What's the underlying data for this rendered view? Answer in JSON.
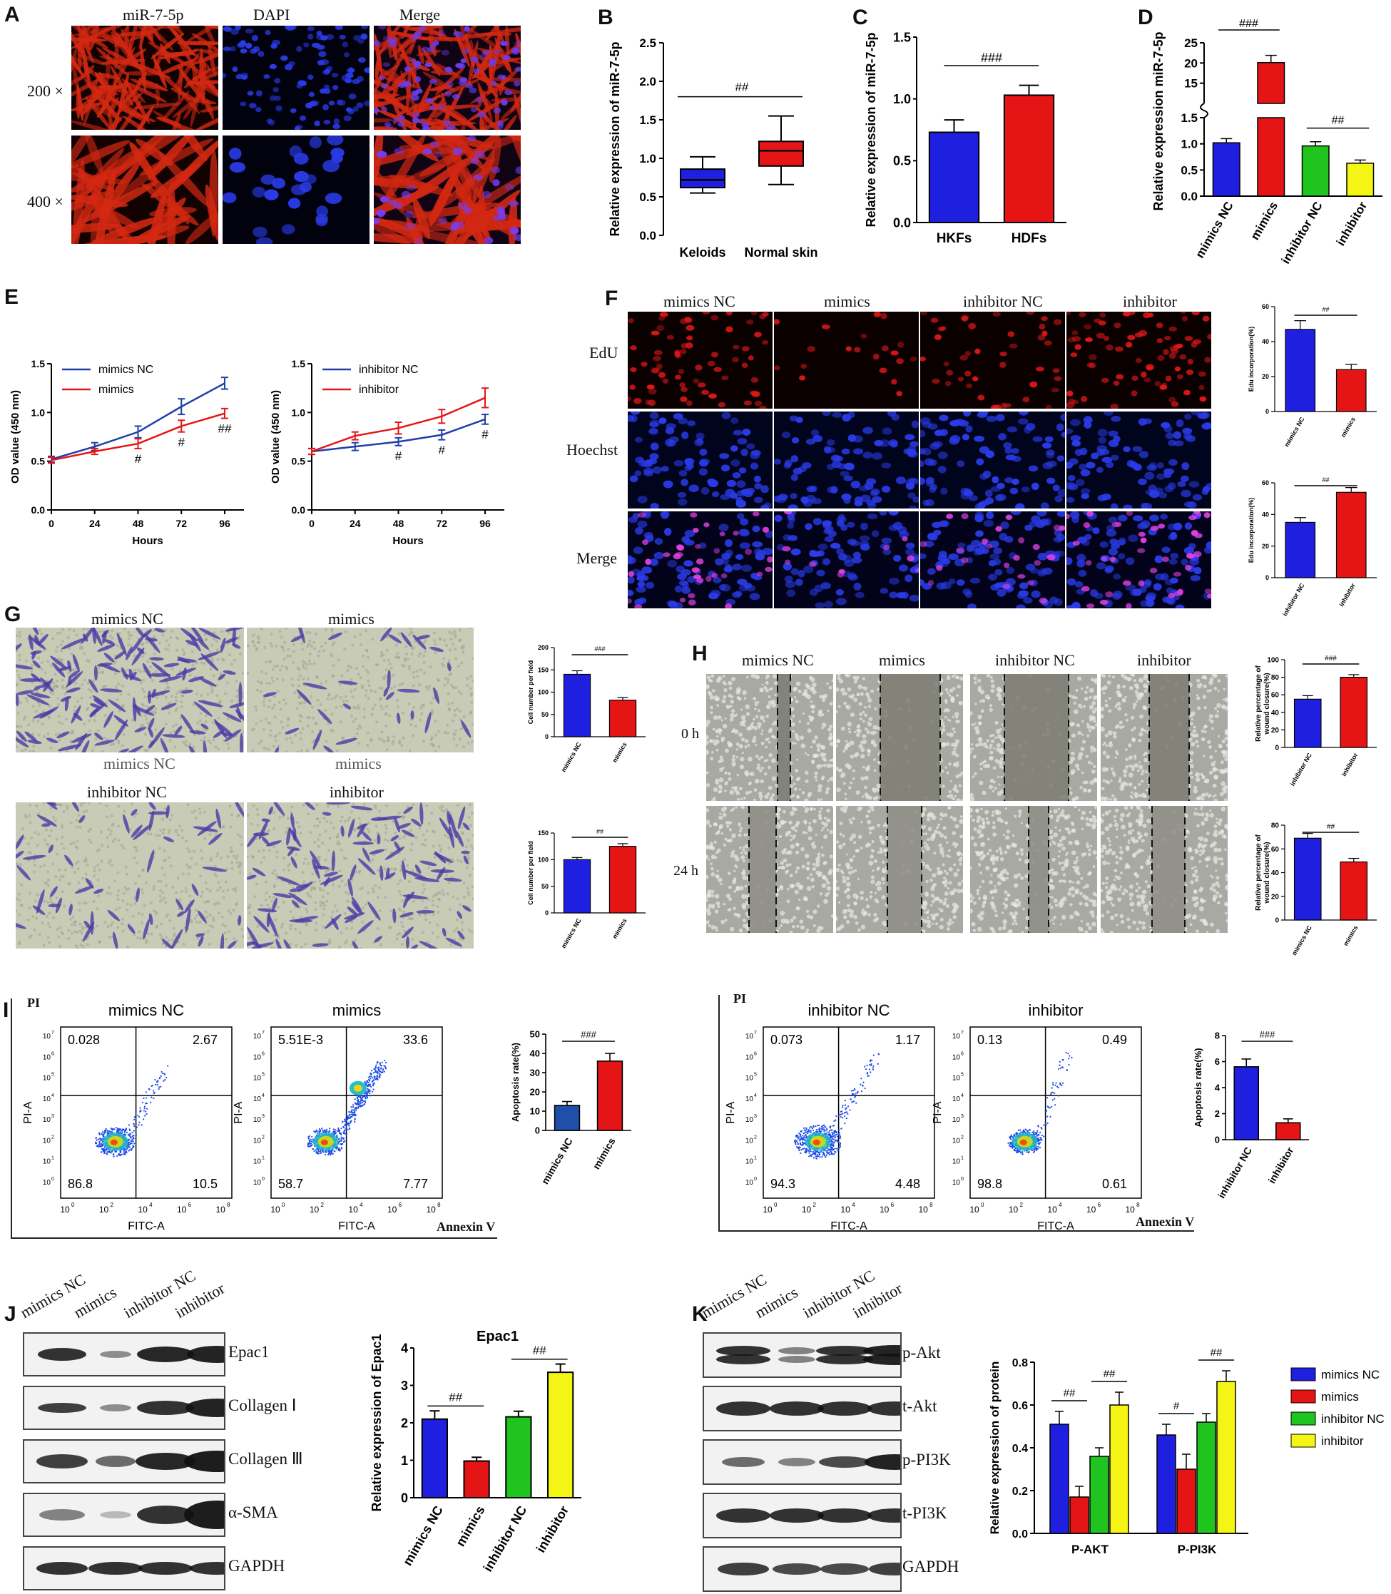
{
  "panels": {
    "A": "A",
    "B": "B",
    "C": "C",
    "D": "D",
    "E": "E",
    "F": "F",
    "G": "G",
    "H": "H",
    "I": "I",
    "J": "J",
    "K": "K"
  },
  "A": {
    "cols": [
      "miR-7-5p",
      "DAPI",
      "Merge"
    ],
    "rows": [
      "200 ×",
      "400 ×"
    ]
  },
  "F": {
    "cols": [
      "mimics NC",
      "mimics",
      "inhibitor NC",
      "inhibitor"
    ],
    "rows": [
      "EdU",
      "Hoechst",
      "Merge"
    ]
  },
  "G": {
    "labels": [
      "mimics NC",
      "mimics",
      "mimics NC",
      "mimics",
      "inhibitor NC",
      "inhibitor"
    ]
  },
  "H": {
    "cols": [
      "mimics NC",
      "mimics",
      "inhibitor NC",
      "inhibitor"
    ],
    "rows": [
      "0 h",
      "24 h"
    ]
  },
  "I": {
    "left": {
      "titles": [
        "mimics NC",
        "mimics"
      ],
      "quads": [
        [
          "0.028",
          "2.67",
          "86.8",
          "10.5"
        ],
        [
          "5.51E-3",
          "33.6",
          "58.7",
          "7.77"
        ]
      ]
    },
    "right": {
      "titles": [
        "inhibitor NC",
        "inhibitor"
      ],
      "quads": [
        [
          "0.073",
          "1.17",
          "94.3",
          "4.48"
        ],
        [
          "0.13",
          "0.49",
          "98.8",
          "0.61"
        ]
      ]
    },
    "pi": "PI",
    "pia": "PI-A",
    "fitc": "FITC-A",
    "annexin": "Annexin V",
    "xticks": [
      "10",
      "10",
      "10",
      "10",
      "10"
    ],
    "xexp": [
      "0",
      "2",
      "4",
      "6",
      "8"
    ],
    "yexp": [
      "7",
      "6",
      "5",
      "4",
      "3",
      "2",
      "1",
      "0"
    ]
  },
  "J": {
    "lanes": [
      "mimics NC",
      "mimics",
      "inhibitor NC",
      "inhibitor"
    ],
    "bands": [
      "Epac1",
      "Collagen Ⅰ",
      "Collagen Ⅲ",
      "α-SMA",
      "GAPDH"
    ]
  },
  "K": {
    "lanes": [
      "mimics NC",
      "mimics",
      "inhibitor NC",
      "inhibitor"
    ],
    "bands": [
      "p-Akt",
      "t-Akt",
      "p-PI3K",
      "t-PI3K",
      "GAPDH"
    ]
  },
  "chart_data": [
    {
      "id": "B",
      "type": "box",
      "categories": [
        "Keloids",
        "Normal skin"
      ],
      "ylabel": "Relative expression of miR-7-5p",
      "ylim": [
        0,
        2.5
      ],
      "yticks": [
        "0.0",
        "0.5",
        "1.0",
        "1.5",
        "2.0",
        "2.5"
      ],
      "boxes": [
        {
          "min": 0.55,
          "q1": 0.62,
          "median": 0.72,
          "q3": 0.86,
          "max": 1.02,
          "color": "#1f1fe0"
        },
        {
          "min": 0.66,
          "q1": 0.9,
          "median": 1.1,
          "q3": 1.22,
          "max": 1.55,
          "color": "#e51515"
        }
      ],
      "sig": "##"
    },
    {
      "id": "C",
      "type": "bar",
      "categories": [
        "HKFs",
        "HDFs"
      ],
      "values": [
        0.73,
        1.03
      ],
      "errors": [
        0.1,
        0.08
      ],
      "colors": [
        "#1f1fe0",
        "#e51515"
      ],
      "ylabel": "Relative expression of miR-7-5p",
      "ylim": [
        0,
        1.5
      ],
      "yticks": [
        "0.0",
        "0.5",
        "1.0",
        "1.5"
      ],
      "sig": "###"
    },
    {
      "id": "D",
      "type": "bar",
      "categories": [
        "mimics NC",
        "mimics",
        "inhibitor NC",
        "inhibitor"
      ],
      "values": [
        1.02,
        20.1,
        0.96,
        0.63
      ],
      "errors": [
        0.08,
        1.8,
        0.08,
        0.06
      ],
      "colors": [
        "#1f1fe0",
        "#e51515",
        "#1fc41f",
        "#f5f515"
      ],
      "ylabel": "Relative expression miR-7-5p",
      "yticks_low": [
        "0.0",
        "0.5",
        "1.0",
        "1.5"
      ],
      "yticks_high": [
        "15",
        "20",
        "25"
      ],
      "sig": [
        "###",
        "##"
      ]
    },
    {
      "id": "E1",
      "type": "line",
      "x": [
        0,
        24,
        48,
        72,
        96
      ],
      "xlabel": "Hours",
      "ylabel": "OD value (450 nm)",
      "ylim": [
        0,
        1.5
      ],
      "yticks": [
        "0.0",
        "0.5",
        "1.0",
        "1.5"
      ],
      "series": [
        {
          "name": "mimics NC",
          "values": [
            0.52,
            0.65,
            0.8,
            1.06,
            1.3
          ],
          "errors": [
            0.03,
            0.04,
            0.06,
            0.08,
            0.06
          ],
          "color": "#1f3fa8"
        },
        {
          "name": "mimics",
          "values": [
            0.51,
            0.6,
            0.68,
            0.86,
            0.99
          ],
          "errors": [
            0.03,
            0.03,
            0.05,
            0.06,
            0.05
          ],
          "color": "#e51515"
        }
      ],
      "sig": [
        "#",
        "#",
        "##"
      ]
    },
    {
      "id": "E2",
      "type": "line",
      "x": [
        0,
        24,
        48,
        72,
        96
      ],
      "xlabel": "Hours",
      "ylabel": "OD value (450 nm)",
      "ylim": [
        0,
        1.5
      ],
      "yticks": [
        "0.0",
        "0.5",
        "1.0",
        "1.5"
      ],
      "series": [
        {
          "name": "inhibitor NC",
          "values": [
            0.6,
            0.65,
            0.7,
            0.77,
            0.93
          ],
          "errors": [
            0.03,
            0.04,
            0.04,
            0.05,
            0.05
          ],
          "color": "#1f3fa8"
        },
        {
          "name": "inhibitor",
          "values": [
            0.6,
            0.76,
            0.84,
            0.96,
            1.15
          ],
          "errors": [
            0.03,
            0.04,
            0.06,
            0.07,
            0.1
          ],
          "color": "#e51515"
        }
      ],
      "sig": [
        "#",
        "#",
        "#"
      ]
    },
    {
      "id": "F1",
      "type": "bar",
      "categories": [
        "mimics NC",
        "mimics"
      ],
      "values": [
        47,
        24
      ],
      "errors": [
        5,
        3
      ],
      "colors": [
        "#1f1fe0",
        "#e51515"
      ],
      "ylabel": "Edu incorporation(%)",
      "ylim": [
        0,
        60
      ],
      "yticks": [
        "0",
        "20",
        "40",
        "60"
      ],
      "sig": "##"
    },
    {
      "id": "F2",
      "type": "bar",
      "categories": [
        "inhibitor NC",
        "inhibitor"
      ],
      "values": [
        35,
        54
      ],
      "errors": [
        3,
        3
      ],
      "colors": [
        "#1f1fe0",
        "#e51515"
      ],
      "ylabel": "Edu incorporation(%)",
      "ylim": [
        0,
        60
      ],
      "yticks": [
        "0",
        "20",
        "40",
        "60"
      ],
      "sig": "##"
    },
    {
      "id": "G1",
      "type": "bar",
      "categories": [
        "mimics NC",
        "mimics"
      ],
      "values": [
        140,
        82
      ],
      "errors": [
        8,
        6
      ],
      "colors": [
        "#1f1fe0",
        "#e51515"
      ],
      "ylabel": "Cell number per field",
      "ylim": [
        0,
        200
      ],
      "yticks": [
        "0",
        "50",
        "100",
        "150",
        "200"
      ],
      "sig": "###"
    },
    {
      "id": "G2",
      "type": "bar",
      "categories": [
        "mimics NC",
        "mimics"
      ],
      "values": [
        100,
        125
      ],
      "errors": [
        4,
        5
      ],
      "colors": [
        "#1f1fe0",
        "#e51515"
      ],
      "ylabel": "Cell number per field",
      "ylim": [
        0,
        150
      ],
      "yticks": [
        "0",
        "50",
        "100",
        "150"
      ],
      "sig": "##"
    },
    {
      "id": "H1",
      "type": "bar",
      "categories": [
        "inhibitor NC",
        "inhibitor"
      ],
      "values": [
        55,
        80
      ],
      "errors": [
        4,
        3
      ],
      "colors": [
        "#1f1fe0",
        "#e51515"
      ],
      "ylabel": "Relative percentage of wound closure(%)",
      "ylim": [
        0,
        100
      ],
      "yticks": [
        "0",
        "20",
        "40",
        "60",
        "80",
        "100"
      ],
      "sig": "###"
    },
    {
      "id": "H2",
      "type": "bar",
      "categories": [
        "mimics NC",
        "mimics"
      ],
      "values": [
        69,
        49
      ],
      "errors": [
        4,
        3
      ],
      "colors": [
        "#1f1fe0",
        "#e51515"
      ],
      "ylabel": "Relative percentage of wound closure(%)",
      "ylim": [
        0,
        80
      ],
      "yticks": [
        "0",
        "20",
        "40",
        "60",
        "80"
      ],
      "sig": "##"
    },
    {
      "id": "I1",
      "type": "bar",
      "categories": [
        "mimics NC",
        "mimics"
      ],
      "values": [
        13,
        36
      ],
      "errors": [
        2,
        4
      ],
      "colors": [
        "#1f4fa8",
        "#e51515"
      ],
      "ylabel": "Apoptosis rate(%)",
      "ylim": [
        0,
        50
      ],
      "yticks": [
        "0",
        "10",
        "20",
        "30",
        "40",
        "50"
      ],
      "sig": "###"
    },
    {
      "id": "I2",
      "type": "bar",
      "categories": [
        "inhibitor NC",
        "inhibitor"
      ],
      "values": [
        5.6,
        1.3
      ],
      "errors": [
        0.6,
        0.3
      ],
      "colors": [
        "#1f1fe0",
        "#e51515"
      ],
      "ylabel": "Apoptosis rate(%)",
      "ylim": [
        0,
        8
      ],
      "yticks": [
        "0",
        "2",
        "4",
        "6",
        "8"
      ],
      "sig": "###"
    },
    {
      "id": "J",
      "type": "bar",
      "title": "Epac1",
      "categories": [
        "mimics NC",
        "mimics",
        "inhibitor NC",
        "inhibitor"
      ],
      "values": [
        2.1,
        0.98,
        2.16,
        3.35
      ],
      "errors": [
        0.22,
        0.1,
        0.15,
        0.22
      ],
      "colors": [
        "#1f1fe0",
        "#e51515",
        "#1fc41f",
        "#f5f515"
      ],
      "ylabel": "Relative expression of Epac1",
      "ylim": [
        0,
        4
      ],
      "yticks": [
        "0",
        "1",
        "2",
        "3",
        "4"
      ],
      "sig": [
        "##",
        "##"
      ]
    },
    {
      "id": "K",
      "type": "grouped-bar",
      "categories": [
        "P-AKT",
        "P-PI3K"
      ],
      "ylabel": "Relative expression of protein",
      "ylim": [
        0,
        0.8
      ],
      "yticks": [
        "0.0",
        "0.2",
        "0.4",
        "0.6",
        "0.8"
      ],
      "series": [
        {
          "name": "mimics NC",
          "values": [
            0.51,
            0.46
          ],
          "errors": [
            0.06,
            0.05
          ],
          "color": "#1f1fe0"
        },
        {
          "name": "mimics",
          "values": [
            0.17,
            0.3
          ],
          "errors": [
            0.05,
            0.07
          ],
          "color": "#e51515"
        },
        {
          "name": "inhibitor NC",
          "values": [
            0.36,
            0.52
          ],
          "errors": [
            0.04,
            0.04
          ],
          "color": "#1fc41f"
        },
        {
          "name": "inhibitor",
          "values": [
            0.6,
            0.71
          ],
          "errors": [
            0.06,
            0.05
          ],
          "color": "#f5f515"
        }
      ],
      "sig": [
        "##",
        "##",
        "#",
        "##"
      ]
    }
  ]
}
